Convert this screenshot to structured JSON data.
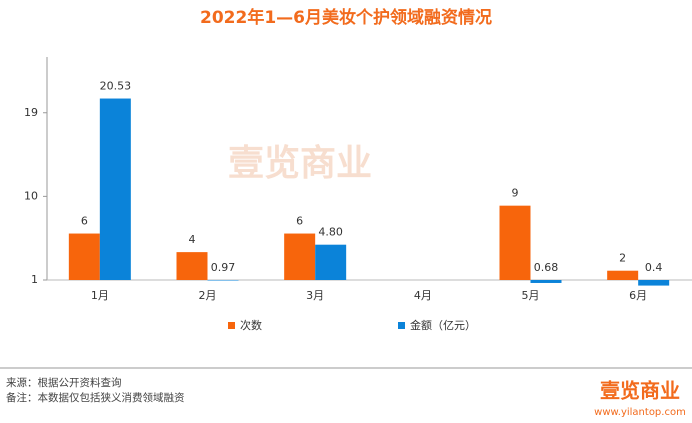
{
  "chart_data": {
    "type": "bar",
    "title": "2022年1—6月美妆个护领域融资情况",
    "categories": [
      "1月",
      "2月",
      "3月",
      "4月",
      "5月",
      "6月"
    ],
    "series": [
      {
        "name": "次数",
        "color": "#f7650c",
        "values": [
          6,
          4,
          6,
          null,
          9,
          2
        ]
      },
      {
        "name": "金额（亿元）",
        "color": "#0b83d9",
        "values": [
          20.53,
          0.97,
          4.8,
          null,
          0.68,
          0.4
        ],
        "value_labels": [
          "20.53",
          "0.97",
          "4.80",
          null,
          "0.68",
          "0.4"
        ]
      }
    ],
    "ylim": [
      1,
      25
    ],
    "yticks": [
      1,
      10,
      19
    ],
    "grid": false,
    "watermark": "壹览商业",
    "source": "来源：根据公开资料查询",
    "note": "备注：本数据仅包括狭义消费领域融资",
    "logo": "壹览商业",
    "website": "www.yilantop.com"
  }
}
